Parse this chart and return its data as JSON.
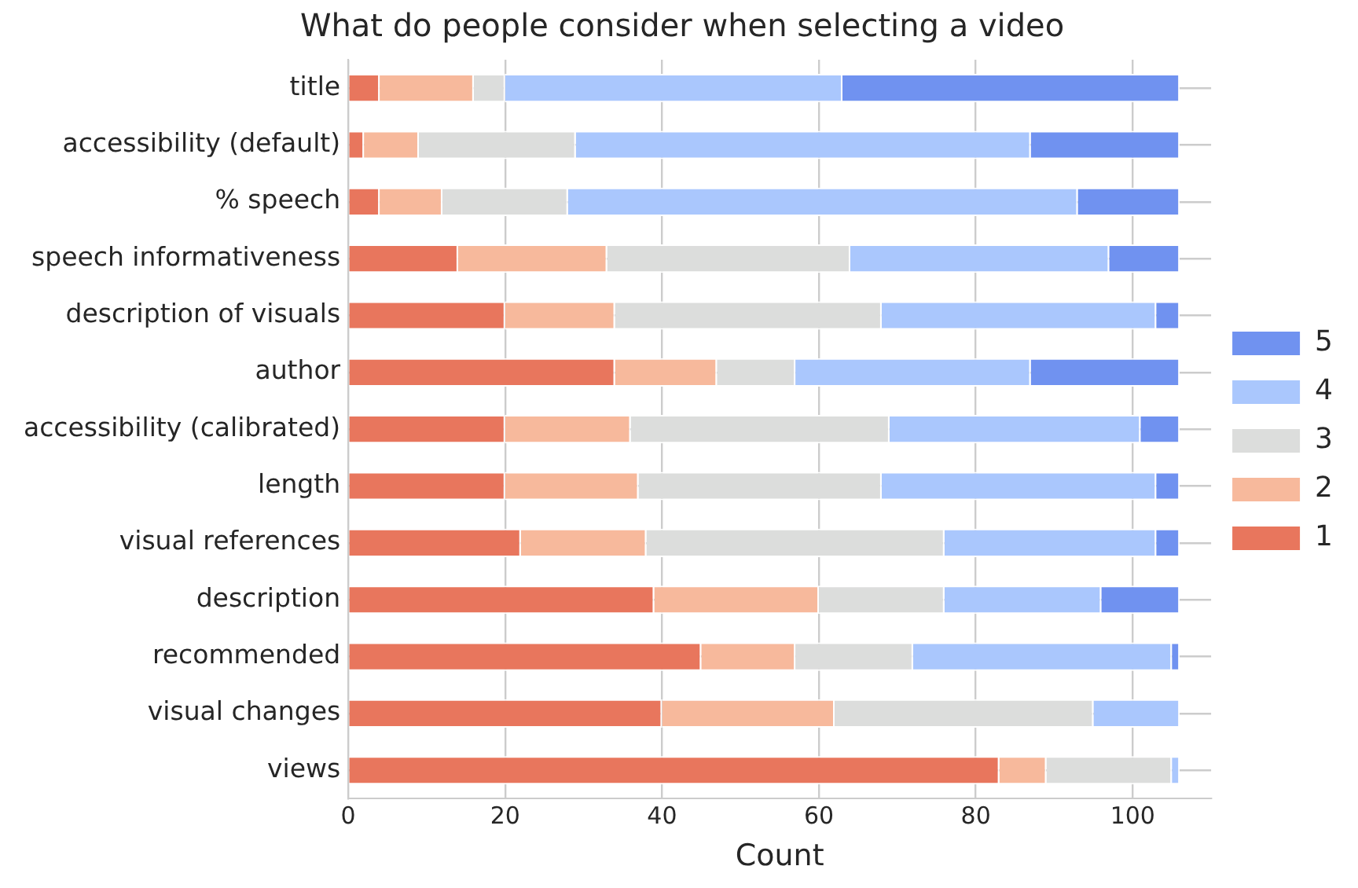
{
  "chart_data": {
    "type": "bar",
    "orientation": "horizontal",
    "stacked": true,
    "title": "What do people consider when selecting a video",
    "xlabel": "Count",
    "categories": [
      "title",
      "accessibility (default)",
      "% speech",
      "speech informativeness",
      "description of visuals",
      "author",
      "accessibility (calibrated)",
      "length",
      "visual references",
      "description",
      "recommended",
      "visual changes",
      "views"
    ],
    "series": [
      {
        "name": "1",
        "color": "#e8765d",
        "values": [
          4,
          2,
          4,
          14,
          20,
          34,
          20,
          20,
          22,
          39,
          45,
          40,
          83
        ]
      },
      {
        "name": "2",
        "color": "#f7b99c",
        "values": [
          12,
          7,
          8,
          19,
          14,
          13,
          16,
          17,
          16,
          21,
          12,
          22,
          6
        ]
      },
      {
        "name": "3",
        "color": "#dcdddc",
        "values": [
          4,
          20,
          16,
          31,
          34,
          10,
          33,
          31,
          38,
          16,
          15,
          33,
          16
        ]
      },
      {
        "name": "4",
        "color": "#aac7fd",
        "values": [
          43,
          58,
          65,
          33,
          35,
          30,
          32,
          35,
          27,
          20,
          33,
          11,
          1
        ]
      },
      {
        "name": "5",
        "color": "#7092f0",
        "values": [
          43,
          19,
          13,
          9,
          3,
          19,
          5,
          3,
          3,
          10,
          1,
          0,
          0
        ]
      }
    ],
    "xlim": [
      0,
      110
    ],
    "xticks": [
      0,
      20,
      40,
      60,
      80,
      100
    ],
    "grid": true,
    "legend": "right"
  }
}
